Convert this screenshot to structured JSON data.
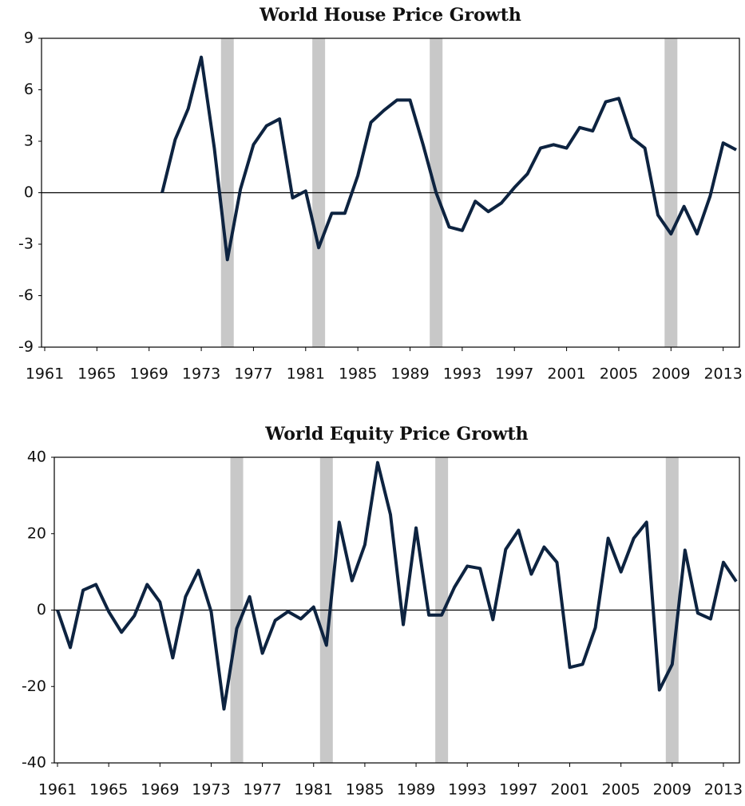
{
  "chart_data": [
    {
      "type": "line",
      "title": "World House Price Growth",
      "x": [
        1961,
        1962,
        1963,
        1964,
        1965,
        1966,
        1967,
        1968,
        1969,
        1970,
        1971,
        1972,
        1973,
        1974,
        1975,
        1976,
        1977,
        1978,
        1979,
        1980,
        1981,
        1982,
        1983,
        1984,
        1985,
        1986,
        1987,
        1988,
        1989,
        1990,
        1991,
        1992,
        1993,
        1994,
        1995,
        1996,
        1997,
        1998,
        1999,
        2000,
        2001,
        2002,
        2003,
        2004,
        2005,
        2006,
        2007,
        2008,
        2009,
        2010,
        2011,
        2012,
        2013,
        2014
      ],
      "series": [
        {
          "color": "#0d2340",
          "values": [
            null,
            null,
            null,
            null,
            null,
            null,
            null,
            null,
            null,
            0,
            3.1,
            4.9,
            7.9,
            2.6,
            -3.9,
            0.2,
            2.8,
            3.9,
            4.3,
            -0.3,
            0.1,
            -3.2,
            -1.2,
            -1.2,
            1.0,
            4.1,
            4.8,
            5.4,
            5.4,
            2.8,
            0,
            -2.0,
            -2.2,
            -0.5,
            -1.1,
            -0.6,
            0.3,
            1.1,
            2.6,
            2.8,
            2.6,
            3.8,
            3.6,
            5.3,
            5.5,
            3.2,
            2.6,
            -1.3,
            -2.4,
            -0.8,
            -2.4,
            -0.2,
            2.9,
            2.5
          ]
        }
      ],
      "shaded_years": [
        1975,
        1982,
        1991,
        2009
      ],
      "shade_color": "#c8c8c8",
      "xlim": [
        1961,
        2014
      ],
      "xticks": [
        1961,
        1965,
        1969,
        1973,
        1977,
        1981,
        1985,
        1989,
        1993,
        1997,
        2001,
        2005,
        2009,
        2013
      ],
      "ylim": [
        -9,
        9
      ],
      "yticks": [
        9,
        6,
        3,
        0,
        -3,
        -6,
        -9
      ]
    },
    {
      "type": "line",
      "title": "World Equity Price Growth",
      "x": [
        1961,
        1962,
        1963,
        1964,
        1965,
        1966,
        1967,
        1968,
        1969,
        1970,
        1971,
        1972,
        1973,
        1974,
        1975,
        1976,
        1977,
        1978,
        1979,
        1980,
        1981,
        1982,
        1983,
        1984,
        1985,
        1986,
        1987,
        1988,
        1989,
        1990,
        1991,
        1992,
        1993,
        1994,
        1995,
        1996,
        1997,
        1998,
        1999,
        2000,
        2001,
        2002,
        2003,
        2004,
        2005,
        2006,
        2007,
        2008,
        2009,
        2010,
        2011,
        2012,
        2013,
        2014
      ],
      "series": [
        {
          "color": "#0d2340",
          "values": [
            0,
            -9.8,
            5.2,
            6.7,
            -0.4,
            -5.8,
            -1.5,
            6.7,
            2.1,
            -12.5,
            3.5,
            10.4,
            -0.4,
            -25.9,
            -4.8,
            3.5,
            -11.3,
            -2.7,
            -0.4,
            -2.3,
            0.8,
            -9.2,
            23,
            7.7,
            17.1,
            38.6,
            25,
            -3.8,
            21.5,
            -1.3,
            -1.3,
            6,
            11.5,
            10.9,
            -2.5,
            15.9,
            20.9,
            9.4,
            16.5,
            12.5,
            -15,
            -14.2,
            -4.6,
            18.8,
            10,
            18.8,
            23,
            -20.9,
            -14.2,
            15.7,
            -0.8,
            -2.3,
            12.5,
            7.5
          ]
        }
      ],
      "shaded_years": [
        1975,
        1982,
        1991,
        2009
      ],
      "shade_color": "#c8c8c8",
      "xlim": [
        1961,
        2014
      ],
      "xticks": [
        1961,
        1965,
        1969,
        1973,
        1977,
        1981,
        1985,
        1989,
        1993,
        1997,
        2001,
        2005,
        2009,
        2013
      ],
      "ylim": [
        -40,
        40
      ],
      "yticks": [
        40,
        20,
        0,
        -20,
        -40
      ]
    }
  ]
}
